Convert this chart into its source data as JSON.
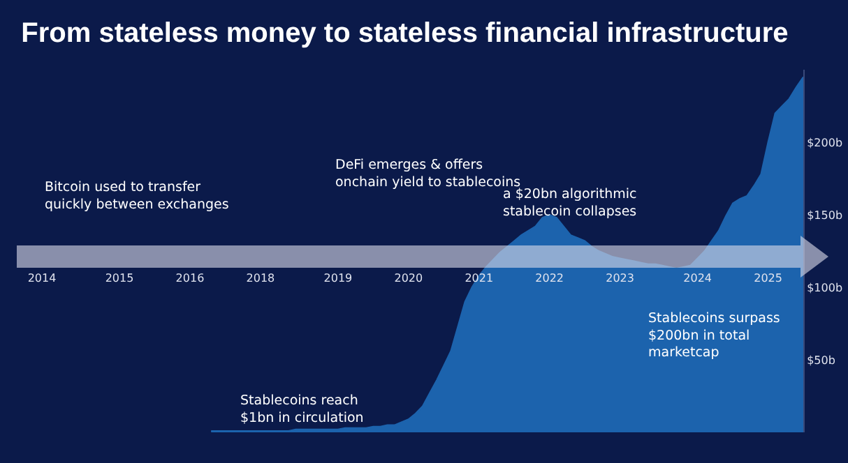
{
  "chart_data": {
    "type": "area",
    "title": "From stateless money to stateless financial infrastructure",
    "categories": [
      "2014",
      null,
      null,
      null,
      null,
      null,
      null,
      null,
      null,
      null,
      null,
      "2015",
      null,
      null,
      null,
      null,
      null,
      null,
      null,
      null,
      null,
      "2016",
      null,
      null,
      null,
      null,
      null,
      null,
      null,
      null,
      null,
      "2018",
      null,
      null,
      null,
      null,
      null,
      null,
      null,
      null,
      null,
      null,
      "2019",
      null,
      null,
      null,
      null,
      null,
      null,
      null,
      null,
      null,
      "2020",
      null,
      null,
      null,
      null,
      null,
      null,
      null,
      null,
      null,
      "2021",
      null,
      null,
      null,
      null,
      null,
      null,
      null,
      null,
      null,
      "2022",
      null,
      null,
      null,
      null,
      null,
      null,
      null,
      null,
      null,
      "2023",
      null,
      null,
      null,
      null,
      null,
      null,
      null,
      null,
      null,
      null,
      "2024",
      null,
      null,
      null,
      null,
      null,
      null,
      null,
      null,
      null,
      "2025",
      null,
      null,
      null,
      null,
      null
    ],
    "values": [
      null,
      null,
      null,
      null,
      null,
      null,
      null,
      null,
      null,
      null,
      null,
      null,
      null,
      null,
      null,
      null,
      null,
      null,
      null,
      null,
      null,
      null,
      null,
      null,
      1,
      1,
      1,
      1,
      1,
      1,
      1,
      1,
      1,
      1,
      1,
      1,
      2,
      2,
      2,
      2,
      2,
      2,
      2,
      3,
      3,
      3,
      3,
      4,
      4,
      5,
      5,
      7,
      9,
      13,
      18,
      27,
      36,
      46,
      56,
      73,
      90,
      100,
      108,
      114,
      119,
      124,
      128,
      132,
      136,
      139,
      142,
      148,
      150,
      148,
      142,
      136,
      134,
      132,
      128,
      125,
      123,
      121,
      120,
      119,
      118,
      117,
      116,
      116,
      115,
      114,
      113,
      114,
      115,
      120,
      125,
      132,
      139,
      149,
      158,
      161,
      163,
      170,
      178,
      200,
      220,
      225,
      230,
      238,
      245
    ],
    "color": "#1c63ad",
    "ylim": [
      0,
      250
    ],
    "yticks": [
      {
        "value": 50,
        "label": "$50b"
      },
      {
        "value": 100,
        "label": "$100b"
      },
      {
        "value": 150,
        "label": "$150b"
      },
      {
        "value": 200,
        "label": "$200b"
      }
    ],
    "annotations": [
      "Bitcoin used to transfer\nquickly between exchanges",
      "DeFi emerges & offers\nonchain yield to stablecoins",
      "a $20bn algorithmic\nstablecoin collapses",
      "Stablecoins reach\n$1bn in circulation",
      "Stablecoins surpass\n$200bn in total\nmarketcap"
    ]
  }
}
